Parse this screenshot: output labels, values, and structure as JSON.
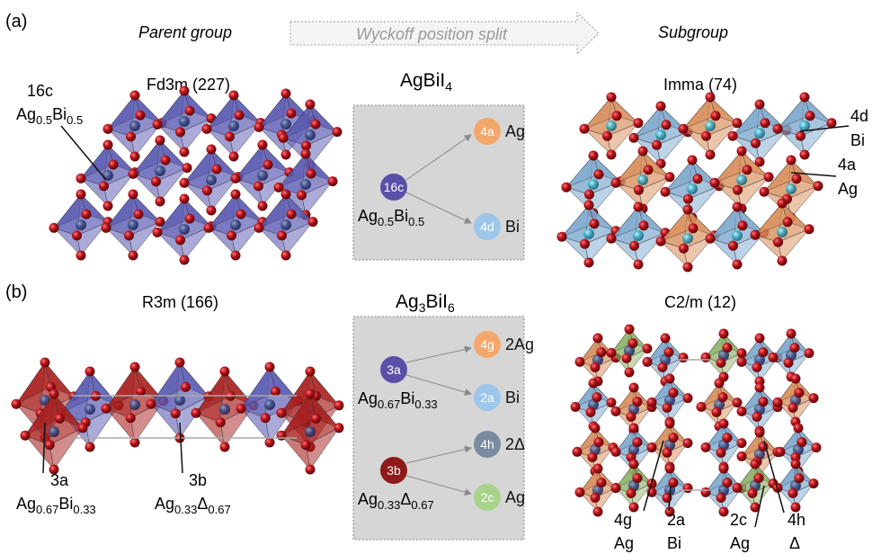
{
  "header": {
    "panel_a": "(a)",
    "parent_group": "Parent group",
    "arrow_label": "Wyckoff position split",
    "subgroup": "Subgroup"
  },
  "panel_a": {
    "parent_title": "Fd3m (227)",
    "compound": {
      "base": "AgBiI",
      "sub": "4"
    },
    "sub_title": "Imma (74)",
    "parent_site": {
      "wyckoff": "16c",
      "occ": [
        [
          "Ag",
          ""
        ],
        [
          "0.5",
          "sub"
        ],
        [
          "Bi",
          ""
        ],
        [
          "0.5",
          "sub"
        ]
      ]
    },
    "sub_sites": [
      {
        "wyckoff": "4d",
        "element": "Bi"
      },
      {
        "wyckoff": "4a",
        "element": "Ag"
      }
    ],
    "split": {
      "from": {
        "label": "16c",
        "occ": [
          [
            "Ag",
            ""
          ],
          [
            "0.5",
            "sub"
          ],
          [
            "Bi",
            ""
          ],
          [
            "0.5",
            "sub"
          ]
        ],
        "color": "#5b50a8"
      },
      "to": [
        {
          "label": "4a",
          "element": "Ag",
          "color": "#f3a76c"
        },
        {
          "label": "4d",
          "element": "Bi",
          "color": "#9cc6ea"
        }
      ]
    }
  },
  "panel_b": {
    "label": "(b)",
    "parent_title": "R3m (166)",
    "compound": {
      "parts": [
        [
          "Ag",
          ""
        ],
        [
          "3",
          "sub"
        ],
        [
          "BiI",
          ""
        ],
        [
          "6",
          "sub"
        ]
      ]
    },
    "sub_title": "C2/m (12)",
    "parent_sites": [
      {
        "wyckoff": "3a",
        "occ": [
          [
            "Ag",
            ""
          ],
          [
            "0.67",
            "sub"
          ],
          [
            "Bi",
            ""
          ],
          [
            "0.33",
            "sub"
          ]
        ]
      },
      {
        "wyckoff": "3b",
        "occ": [
          [
            "Ag",
            ""
          ],
          [
            "0.33",
            "sub"
          ],
          [
            "Δ",
            ""
          ],
          [
            "0.67",
            "sub"
          ]
        ]
      }
    ],
    "split_groups": [
      {
        "from": {
          "label": "3a",
          "occ": [
            [
              "Ag",
              ""
            ],
            [
              "0.67",
              "sub"
            ],
            [
              "Bi",
              ""
            ],
            [
              "0.33",
              "sub"
            ]
          ],
          "color": "#5b50a8"
        },
        "to": [
          {
            "label": "4g",
            "element": "2Ag",
            "color": "#f3a76c"
          },
          {
            "label": "2a",
            "element": "Bi",
            "color": "#9cc6ea"
          }
        ]
      },
      {
        "from": {
          "label": "3b",
          "occ": [
            [
              "Ag",
              ""
            ],
            [
              "0.33",
              "sub"
            ],
            [
              "Δ",
              ""
            ],
            [
              "0.67",
              "sub"
            ]
          ],
          "color": "#8e1a1a"
        },
        "to": [
          {
            "label": "4h",
            "element": "2Δ",
            "color": "#7a8aa0"
          },
          {
            "label": "2c",
            "element": "Ag",
            "color": "#a7d38a"
          }
        ]
      }
    ],
    "sub_sites": [
      {
        "wyckoff": "4g",
        "element": "Ag"
      },
      {
        "wyckoff": "2a",
        "element": "Bi"
      },
      {
        "wyckoff": "2c",
        "element": "Ag"
      },
      {
        "wyckoff": "4h",
        "element": "Δ"
      }
    ]
  },
  "colors": {
    "octa_blue": "#5a5ab4",
    "octa_red": "#a8201e",
    "octa_orange": "#d98f5b",
    "octa_lightblue": "#7ea9cf",
    "octa_green": "#8fb46a",
    "iodine": "#b4141c",
    "box_fill": "#d6d6d6"
  }
}
